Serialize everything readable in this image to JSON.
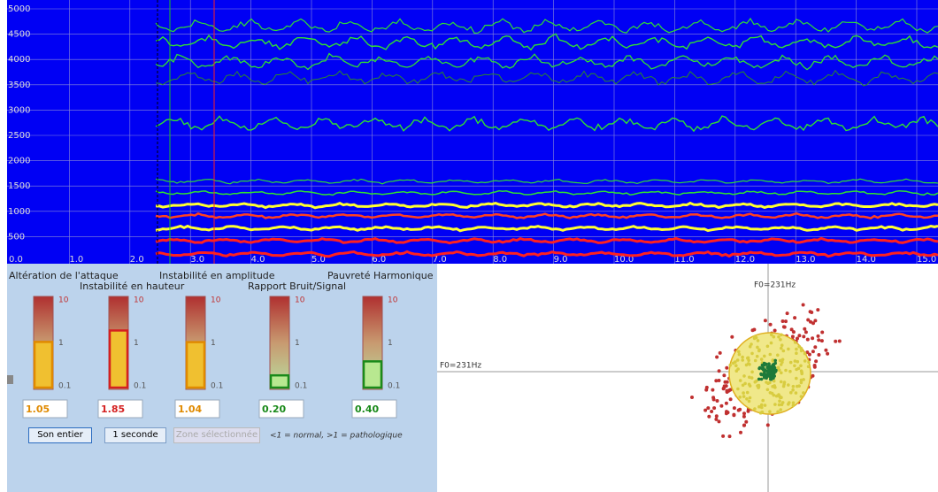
{
  "spectrogram": {
    "y_labels": [
      "5000",
      "4500",
      "4000",
      "3500",
      "3000",
      "2500",
      "2000",
      "1500",
      "1000",
      "500"
    ],
    "x_labels": [
      "0.0",
      "1.0",
      "2.0",
      "3.0",
      "4.0",
      "5.0",
      "6.0",
      "7.0",
      "8.0",
      "9.0",
      "10.0",
      "11.0",
      "12.0",
      "13.0",
      "14.0",
      "15.0"
    ]
  },
  "gauges": {
    "scale": [
      "10",
      "1",
      "0.1"
    ],
    "items": [
      {
        "title": "Altération de l'attaque",
        "value": 1.05,
        "label": "1.05",
        "color": "#e08a00"
      },
      {
        "title": "Instabilité en hauteur",
        "value": 1.85,
        "label": "1.85",
        "color": "#d42020"
      },
      {
        "title": "Instabilité en amplitude",
        "value": 1.04,
        "label": "1.04",
        "color": "#e08a00"
      },
      {
        "title": "Rapport Bruit/Signal",
        "value": 0.2,
        "label": "0.20",
        "color": "#1a8a1a"
      },
      {
        "title": "Pauvreté Harmonique",
        "value": 0.4,
        "label": "0.40",
        "color": "#1a8a1a"
      }
    ]
  },
  "buttons": [
    "Son entier",
    "1 seconde",
    "Zone sélectionnée"
  ],
  "note": "<1 = normal, >1 = pathologique",
  "scatter": {
    "x_label": "F0=231Hz",
    "y_label": "F0=231Hz"
  }
}
